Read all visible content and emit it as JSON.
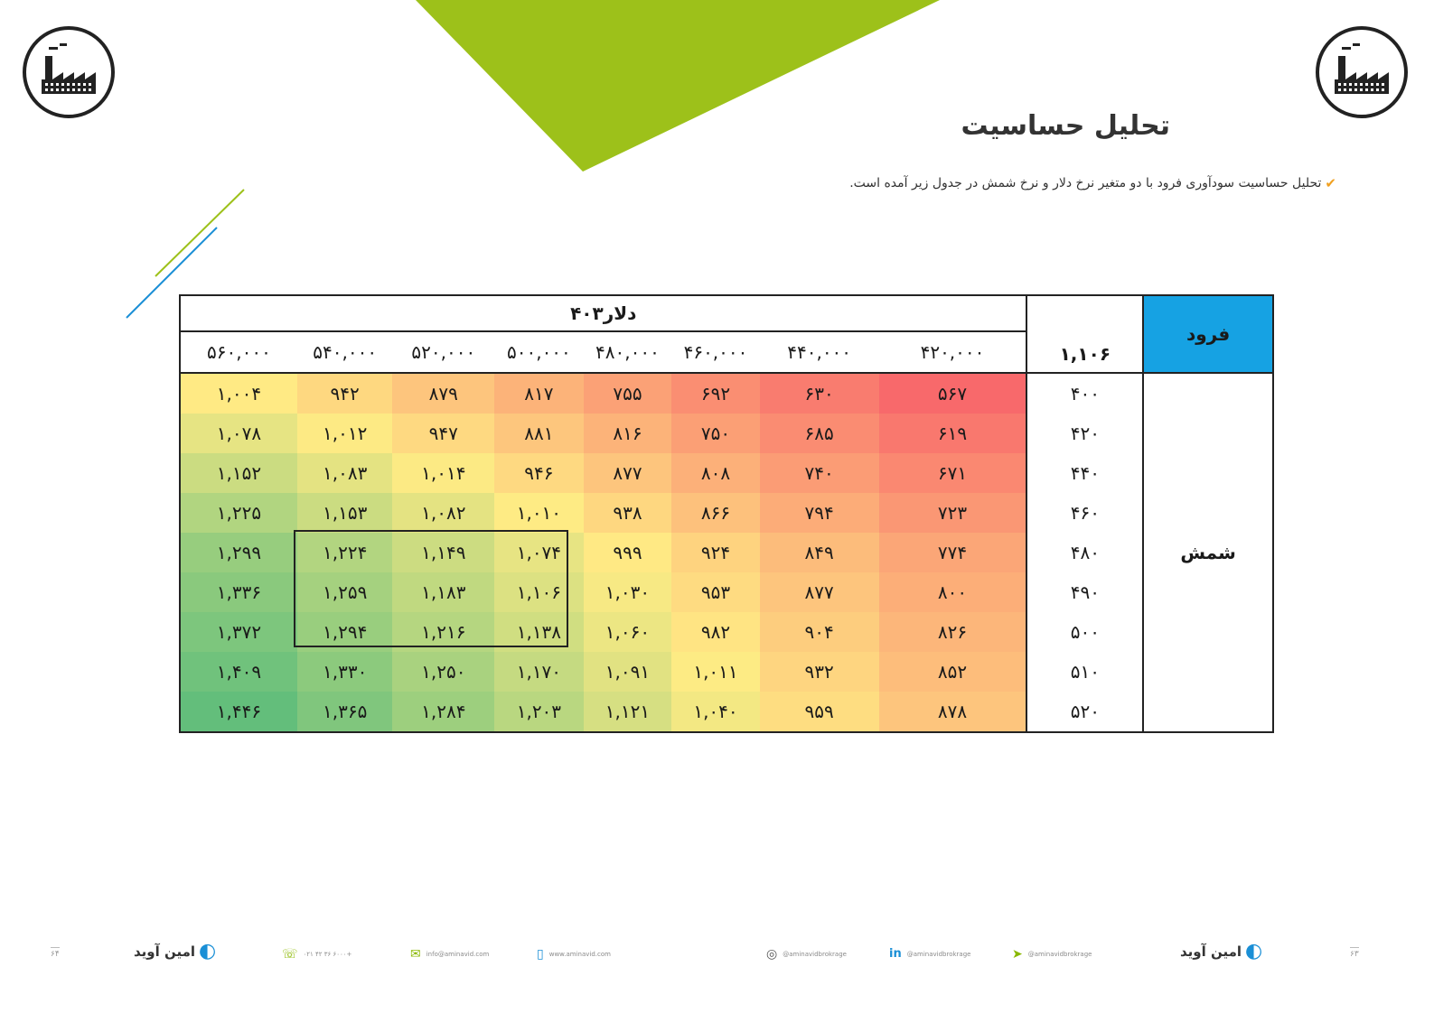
{
  "header": {
    "title": "تحلیل حساسیت",
    "intro": "تحلیل حساسیت سودآوری فرود با دو متغیر نرخ دلار و نرخ شمش در جدول زیر آمده است.",
    "accent_green": "#9dc11a",
    "accent_blue": "#1a8fd6"
  },
  "table": {
    "corner_label": "فرود",
    "current_value": "۱,۱۰۶",
    "column_group_label": "دلار۴۰۳",
    "row_group_label": "شمش",
    "columns": [
      "۴۲۰,۰۰۰",
      "۴۴۰,۰۰۰",
      "۴۶۰,۰۰۰",
      "۴۸۰,۰۰۰",
      "۵۰۰,۰۰۰",
      "۵۲۰,۰۰۰",
      "۵۴۰,۰۰۰",
      "۵۶۰,۰۰۰"
    ],
    "rows": [
      {
        "label": "۴۰۰",
        "values": [
          "۵۶۷",
          "۶۳۰",
          "۶۹۲",
          "۷۵۵",
          "۸۱۷",
          "۸۷۹",
          "۹۴۲",
          "۱,۰۰۴"
        ]
      },
      {
        "label": "۴۲۰",
        "values": [
          "۶۱۹",
          "۶۸۵",
          "۷۵۰",
          "۸۱۶",
          "۸۸۱",
          "۹۴۷",
          "۱,۰۱۲",
          "۱,۰۷۸"
        ]
      },
      {
        "label": "۴۴۰",
        "values": [
          "۶۷۱",
          "۷۴۰",
          "۸۰۸",
          "۸۷۷",
          "۹۴۶",
          "۱,۰۱۴",
          "۱,۰۸۳",
          "۱,۱۵۲"
        ]
      },
      {
        "label": "۴۶۰",
        "values": [
          "۷۲۳",
          "۷۹۴",
          "۸۶۶",
          "۹۳۸",
          "۱,۰۱۰",
          "۱,۰۸۲",
          "۱,۱۵۳",
          "۱,۲۲۵"
        ]
      },
      {
        "label": "۴۸۰",
        "values": [
          "۷۷۴",
          "۸۴۹",
          "۹۲۴",
          "۹۹۹",
          "۱,۰۷۴",
          "۱,۱۴۹",
          "۱,۲۲۴",
          "۱,۲۹۹"
        ]
      },
      {
        "label": "۴۹۰",
        "values": [
          "۸۰۰",
          "۸۷۷",
          "۹۵۳",
          "۱,۰۳۰",
          "۱,۱۰۶",
          "۱,۱۸۳",
          "۱,۲۵۹",
          "۱,۳۳۶"
        ]
      },
      {
        "label": "۵۰۰",
        "values": [
          "۸۲۶",
          "۹۰۴",
          "۹۸۲",
          "۱,۰۶۰",
          "۱,۱۳۸",
          "۱,۲۱۶",
          "۱,۲۹۴",
          "۱,۳۷۲"
        ]
      },
      {
        "label": "۵۱۰",
        "values": [
          "۸۵۲",
          "۹۳۲",
          "۱,۰۱۱",
          "۱,۰۹۱",
          "۱,۱۷۰",
          "۱,۲۵۰",
          "۱,۳۳۰",
          "۱,۴۰۹"
        ]
      },
      {
        "label": "۵۲۰",
        "values": [
          "۸۷۸",
          "۹۵۹",
          "۱,۰۴۰",
          "۱,۱۲۱",
          "۱,۲۰۳",
          "۱,۲۸۴",
          "۱,۳۶۵",
          "۱,۴۴۶"
        ]
      }
    ],
    "heat_values": [
      [
        567,
        630,
        692,
        755,
        817,
        879,
        942,
        1004
      ],
      [
        619,
        685,
        750,
        816,
        881,
        947,
        1012,
        1078
      ],
      [
        671,
        740,
        808,
        877,
        946,
        1014,
        1083,
        1152
      ],
      [
        723,
        794,
        866,
        938,
        1010,
        1082,
        1153,
        1225
      ],
      [
        774,
        849,
        924,
        999,
        1074,
        1149,
        1224,
        1299
      ],
      [
        800,
        877,
        953,
        1030,
        1106,
        1183,
        1259,
        1336
      ],
      [
        826,
        904,
        982,
        1060,
        1138,
        1216,
        1294,
        1372
      ],
      [
        852,
        932,
        1011,
        1091,
        1170,
        1250,
        1330,
        1409
      ],
      [
        878,
        959,
        1040,
        1121,
        1203,
        1284,
        1365,
        1446
      ]
    ],
    "heat_colors": {
      "low": "#f8696b",
      "mid": "#ffeb84",
      "high": "#63be7b"
    }
  },
  "footer": {
    "brand": "امین آوید",
    "phone": "۰۲۱ ۴۲ ۳۶ ۶۰۰۰+",
    "email": "info@aminavid.com",
    "website": "www.aminavid.com",
    "instagram": "@aminavidbrokrage",
    "linkedin": "@aminavidbrokrage",
    "telegram": "@aminavidbrokrage",
    "page_left": "۶۴",
    "page_right": "۶۳"
  }
}
